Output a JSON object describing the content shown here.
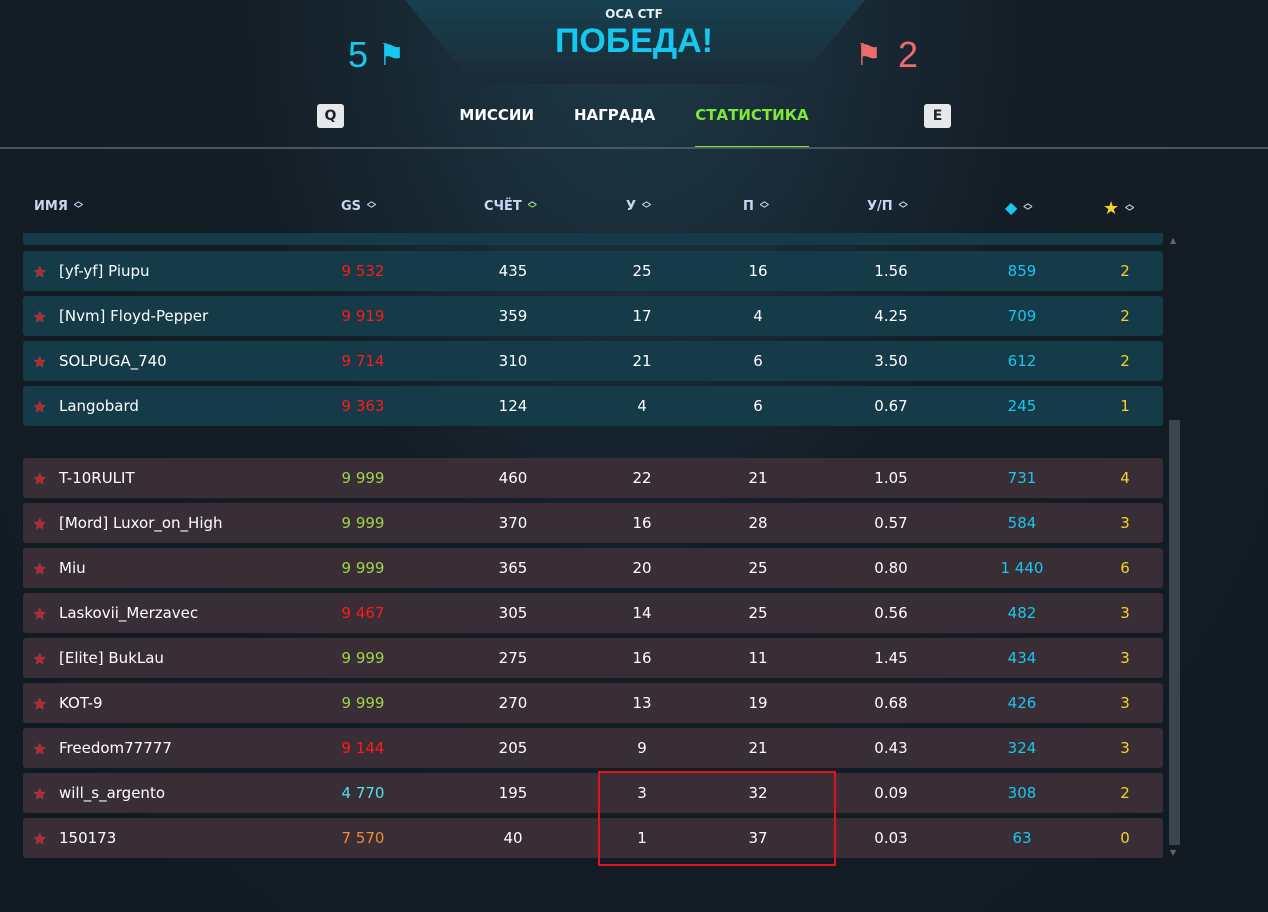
{
  "header": {
    "mode": "ОСА CTF",
    "result": "ПОБЕДА!",
    "our_score": "5",
    "enemy_score": "2",
    "our_color": "#16c8f0",
    "enemy_color": "#ec6b6e"
  },
  "tabs": [
    {
      "label": "МИССИИ"
    },
    {
      "label": "НАГРАДА"
    },
    {
      "label": "СТАТИСТИКА",
      "active": true
    }
  ],
  "keys": {
    "prev": "Q",
    "next": "E"
  },
  "columns": {
    "name": "ИМЯ",
    "gs": "GS",
    "score": "СЧЁТ",
    "kills": "У",
    "deaths": "П",
    "kd": "У/П",
    "crystals_icon": "diamond-icon",
    "stars_icon": "star-icon",
    "sorted_by": "СЧЁТ"
  },
  "team_blue": [
    {
      "name": "[yf-yf] Piupu",
      "gs": "9 532",
      "gs_color": "#ff1a1a",
      "score": "435",
      "k": "25",
      "d": "16",
      "kd": "1.56",
      "cr": "859",
      "st": "2"
    },
    {
      "name": "[Nvm] Floyd-Pepper",
      "gs": "9 919",
      "gs_color": "#ff1a1a",
      "score": "359",
      "k": "17",
      "d": "4",
      "kd": "4.25",
      "cr": "709",
      "st": "2"
    },
    {
      "name": "SOLPUGA_740",
      "gs": "9 714",
      "gs_color": "#ff1a1a",
      "score": "310",
      "k": "21",
      "d": "6",
      "kd": "3.50",
      "cr": "612",
      "st": "2"
    },
    {
      "name": "Langobard",
      "gs": "9 363",
      "gs_color": "#ff1a1a",
      "score": "124",
      "k": "4",
      "d": "6",
      "kd": "0.67",
      "cr": "245",
      "st": "1"
    }
  ],
  "team_red": [
    {
      "name": "T-10RULIT",
      "gs": "9 999",
      "gs_color": "#9fd44a",
      "score": "460",
      "k": "22",
      "d": "21",
      "kd": "1.05",
      "cr": "731",
      "st": "4"
    },
    {
      "name": "[Mord] Luxor_on_High",
      "gs": "9 999",
      "gs_color": "#9fd44a",
      "score": "370",
      "k": "16",
      "d": "28",
      "kd": "0.57",
      "cr": "584",
      "st": "3"
    },
    {
      "name": "Miu",
      "gs": "9 999",
      "gs_color": "#9fd44a",
      "score": "365",
      "k": "20",
      "d": "25",
      "kd": "0.80",
      "cr": "1 440",
      "st": "6"
    },
    {
      "name": "Laskovii_Merzavec",
      "gs": "9 467",
      "gs_color": "#ff1a1a",
      "score": "305",
      "k": "14",
      "d": "25",
      "kd": "0.56",
      "cr": "482",
      "st": "3"
    },
    {
      "name": "[Elite] BukLau",
      "gs": "9 999",
      "gs_color": "#9fd44a",
      "score": "275",
      "k": "16",
      "d": "11",
      "kd": "1.45",
      "cr": "434",
      "st": "3"
    },
    {
      "name": "KOT-9",
      "gs": "9 999",
      "gs_color": "#9fd44a",
      "score": "270",
      "k": "13",
      "d": "19",
      "kd": "0.68",
      "cr": "426",
      "st": "3"
    },
    {
      "name": "Freedom77777",
      "gs": "9 144",
      "gs_color": "#ff1a1a",
      "score": "205",
      "k": "9",
      "d": "21",
      "kd": "0.43",
      "cr": "324",
      "st": "3"
    },
    {
      "name": "will_s_argento",
      "gs": "4 770",
      "gs_color": "#4fe3e8",
      "score": "195",
      "k": "3",
      "d": "32",
      "kd": "0.09",
      "cr": "308",
      "st": "2"
    },
    {
      "name": "150173",
      "gs": "7 570",
      "gs_color": "#f08a36",
      "score": "40",
      "k": "1",
      "d": "37",
      "kd": "0.03",
      "cr": "63",
      "st": "0"
    }
  ]
}
